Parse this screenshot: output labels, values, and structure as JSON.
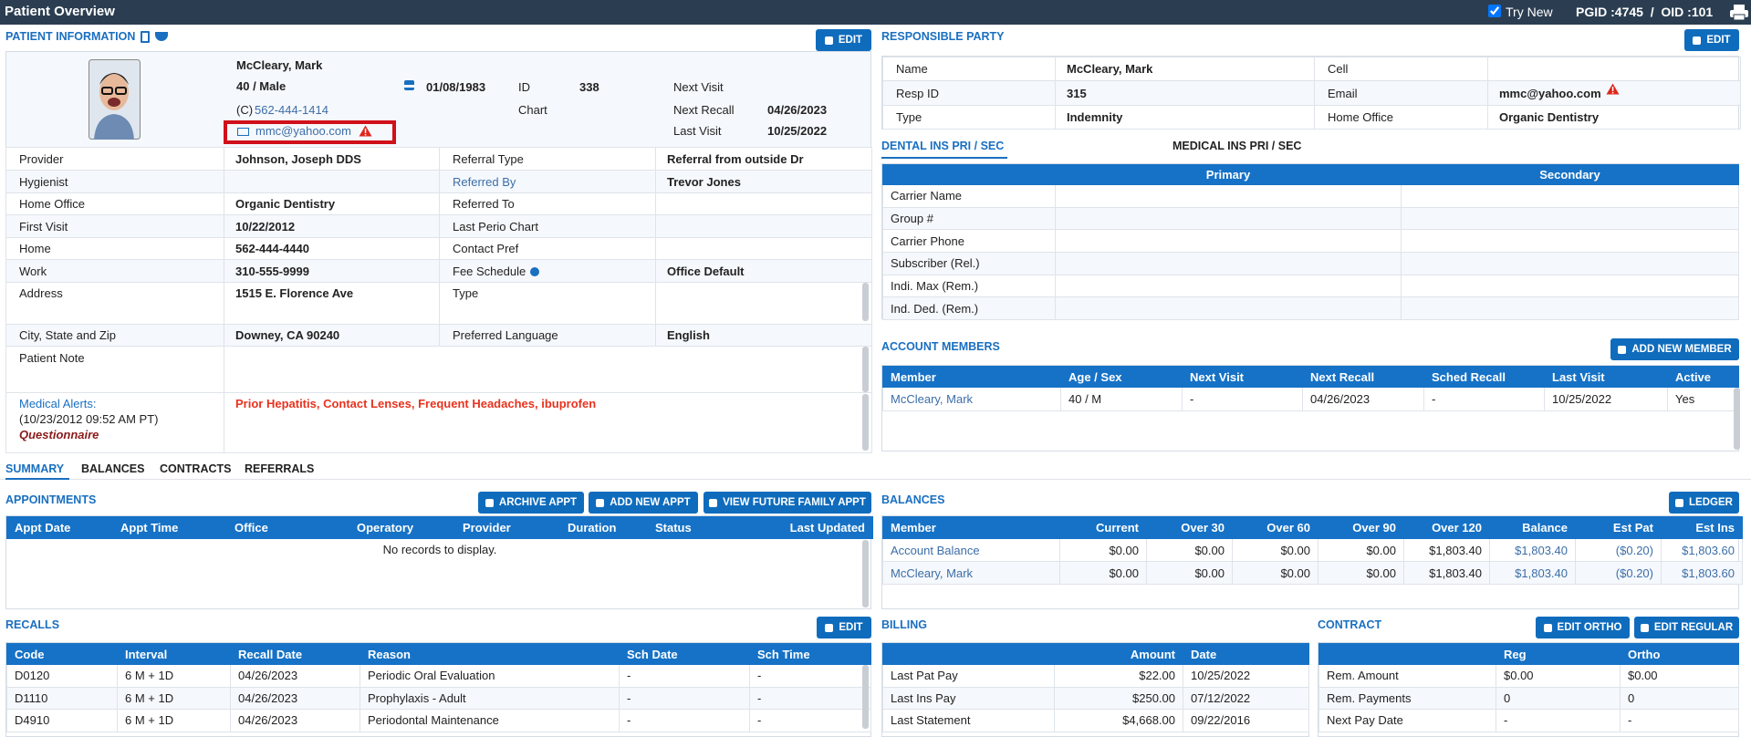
{
  "header": {
    "title": "Patient Overview",
    "try_new": "Try New",
    "ids": "PGID :4745  /  OID :101"
  },
  "patient_info": {
    "title": "PATIENT INFORMATION",
    "edit": "EDIT",
    "name": "McCleary, Mark",
    "age_sex": "40 / Male",
    "phone_prefix": "(C)",
    "phone": "562-444-1414",
    "email": "mmc@yahoo.com",
    "dob": "01/08/1983",
    "id_label": "ID",
    "id": "338",
    "chart_label": "Chart",
    "next_visit_label": "Next Visit",
    "next_recall_label": "Next Recall",
    "next_recall": "04/26/2023",
    "last_visit_label": "Last Visit",
    "last_visit": "10/25/2022",
    "rows": [
      [
        {
          "label": "Provider",
          "value": "Johnson, Joseph DDS"
        },
        {
          "label": "Referral Type",
          "value": "Referral from outside Dr"
        }
      ],
      [
        {
          "label": "Hygienist"
        },
        {
          "label": "Referred By",
          "value": "Trevor Jones"
        }
      ],
      [
        {
          "label": "Home Office",
          "value": "Organic Dentistry"
        },
        {
          "label": "Referred To"
        }
      ],
      [
        {
          "label": "First Visit",
          "value": "10/22/2012"
        },
        {
          "label": "Last Perio Chart"
        }
      ],
      [
        {
          "label": "Home",
          "value": "562-444-4440"
        },
        {
          "label": "Contact Pref"
        }
      ],
      [
        {
          "label": "Work",
          "value": "310-555-9999"
        },
        {
          "label": "Fee Schedule",
          "value": "Office Default"
        }
      ],
      [
        {
          "label": "Address",
          "value": "1515 E. Florence Ave"
        },
        {
          "label": "Type"
        }
      ],
      [
        {
          "label": "City, State and Zip",
          "value": "Downey, CA 90240"
        },
        {
          "label": "Preferred Language",
          "value": "English"
        }
      ]
    ],
    "patient_note": "Patient Note",
    "alerts_label": "Medical Alerts:",
    "alerts_date": "(10/23/2012 09:52 AM PT)",
    "questionnaire": "Questionnaire",
    "alerts": "Prior Hepatitis, Contact Lenses, Frequent Headaches, ibuprofen"
  },
  "responsible_party": {
    "title": "RESPONSIBLE PARTY",
    "edit": "EDIT",
    "rows": [
      [
        {
          "label": "Name",
          "value": "McCleary, Mark"
        },
        {
          "label": "Cell"
        }
      ],
      [
        {
          "label": "Resp ID",
          "value": "315"
        },
        {
          "label": "Email",
          "value": "mmc@yahoo.com"
        }
      ],
      [
        {
          "label": "Type",
          "value": "Indemnity"
        },
        {
          "label": "Home Office",
          "value": "Organic Dentistry"
        }
      ]
    ]
  },
  "insurance": {
    "tabs": [
      "DENTAL INS PRI / SEC",
      "MEDICAL INS PRI / SEC"
    ],
    "columns": [
      "Primary",
      "Secondary"
    ],
    "rows": [
      "Carrier Name",
      "Group #",
      "Carrier Phone",
      "Subscriber (Rel.)",
      "Indi. Max (Rem.)",
      "Ind. Ded. (Rem.)"
    ]
  },
  "account_members": {
    "title": "ACCOUNT MEMBERS",
    "button": "ADD NEW MEMBER",
    "columns": [
      "Member",
      "Age / Sex",
      "Next Visit",
      "Next Recall",
      "Sched Recall",
      "Last Visit",
      "Active"
    ],
    "rows": [
      [
        "McCleary, Mark",
        "40 / M",
        "-",
        "04/26/2023",
        "-",
        "10/25/2022",
        "Yes"
      ]
    ]
  },
  "tabs": [
    "SUMMARY",
    "BALANCES",
    "CONTRACTS",
    "REFERRALS"
  ],
  "appointments": {
    "title": "APPOINTMENTS",
    "buttons": [
      "ARCHIVE APPT",
      "ADD NEW APPT",
      "VIEW FUTURE FAMILY APPT"
    ],
    "columns": [
      "Appt Date",
      "Appt Time",
      "Office",
      "Operatory",
      "Provider",
      "Duration",
      "Status",
      "Last Updated"
    ],
    "empty": "No records to display."
  },
  "balances": {
    "title": "BALANCES",
    "button": "LEDGER",
    "columns": [
      "Member",
      "Current",
      "Over 30",
      "Over 60",
      "Over 90",
      "Over 120",
      "Balance",
      "Est Pat",
      "Est Ins"
    ],
    "rows": [
      [
        "Account Balance",
        "$0.00",
        "$0.00",
        "$0.00",
        "$0.00",
        "$1,803.40",
        "$1,803.40",
        "($0.20)",
        "$1,803.60"
      ],
      [
        "McCleary, Mark",
        "$0.00",
        "$0.00",
        "$0.00",
        "$0.00",
        "$1,803.40",
        "$1,803.40",
        "($0.20)",
        "$1,803.60"
      ]
    ]
  },
  "recalls": {
    "title": "RECALLS",
    "edit": "EDIT",
    "columns": [
      "Code",
      "Interval",
      "Recall Date",
      "Reason",
      "Sch Date",
      "Sch Time"
    ],
    "rows": [
      [
        "D0120",
        "6 M + 1D",
        "04/26/2023",
        "Periodic Oral Evaluation",
        "-",
        "-"
      ],
      [
        "D1110",
        "6 M + 1D",
        "04/26/2023",
        "Prophylaxis - Adult",
        "-",
        "-"
      ],
      [
        "D4910",
        "6 M + 1D",
        "04/26/2023",
        "Periodontal Maintenance",
        "-",
        "-"
      ]
    ]
  },
  "billing": {
    "title": "BILLING",
    "columns": [
      "Amount",
      "Date"
    ],
    "rows": [
      [
        "Last Pat Pay",
        "$22.00",
        "10/25/2022"
      ],
      [
        "Last Ins Pay",
        "$250.00",
        "07/12/2022"
      ],
      [
        "Last Statement",
        "$4,668.00",
        "09/22/2016"
      ]
    ]
  },
  "contract": {
    "title": "CONTRACT",
    "buttons": [
      "EDIT ORTHO",
      "EDIT REGULAR"
    ],
    "columns": [
      "Reg",
      "Ortho"
    ],
    "rows": [
      [
        "Rem. Amount",
        "$0.00",
        "$0.00"
      ],
      [
        "Rem. Payments",
        "0",
        "0"
      ],
      [
        "Next Pay Date",
        "-",
        "-"
      ]
    ]
  }
}
